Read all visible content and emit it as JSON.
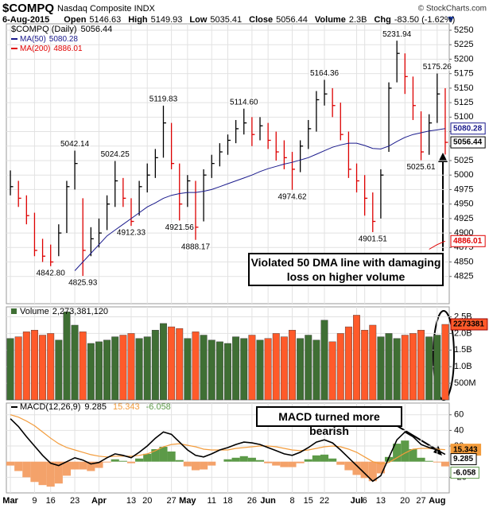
{
  "chart_data": {
    "type": "ohlc",
    "title": "$COMPQ",
    "subtitle": "Nasdaq Composite INDX",
    "source": "© StockCharts.com",
    "header": {
      "date": "6-Aug-2015",
      "stats": [
        {
          "label": "Open",
          "value": "5146.63"
        },
        {
          "label": "High",
          "value": "5149.93"
        },
        {
          "label": "Low",
          "value": "5035.41"
        },
        {
          "label": "Close",
          "value": "5056.44"
        },
        {
          "label": "Volume",
          "value": "2.3B"
        },
        {
          "label": "Chg",
          "value": "-83.50 (-1.62%)"
        }
      ]
    },
    "grid": true,
    "categories": [
      "Mar",
      null,
      null,
      "9",
      null,
      "16",
      null,
      null,
      "23",
      null,
      null,
      "Apr",
      null,
      null,
      null,
      "13",
      null,
      "20",
      null,
      null,
      "27",
      null,
      "May",
      null,
      null,
      "11",
      null,
      "18",
      null,
      null,
      "26",
      null,
      "Jun",
      null,
      null,
      "8",
      null,
      "15",
      null,
      "22",
      null,
      null,
      null,
      "Jul",
      "6",
      null,
      "13",
      null,
      null,
      "20",
      null,
      "27",
      null,
      "Aug",
      null
    ],
    "price": {
      "name": "$COMPQ (Daily)",
      "up_color": "#000000",
      "down_color": "#dd0000",
      "ylim": [
        4778,
        5261
      ],
      "yticks": [
        4825,
        4850,
        4875,
        4900,
        4925,
        4950,
        4975,
        5000,
        5025,
        5050,
        5075,
        5100,
        5125,
        5150,
        5175,
        5200,
        5225,
        5250
      ],
      "high": [
        5008,
        4990,
        4965,
        4935,
        4890,
        4880,
        4915,
        4990,
        5042.14,
        4960,
        4910,
        4925,
        4965,
        5024.25,
        4995,
        4960,
        4990,
        5020,
        5045,
        5119.83,
        5090,
        5020,
        5000,
        4990,
        5010,
        5035,
        5055,
        5070,
        5095,
        5114.6,
        5100,
        5100,
        5090,
        5075,
        5060,
        5040,
        5060,
        5095,
        5145,
        5164.36,
        5150,
        5125,
        5075,
        5020,
        5000,
        4970,
        5010,
        5160,
        5231.94,
        5210,
        5170,
        5110,
        5105,
        5175.26,
        5149.93
      ],
      "low": [
        4965,
        4945,
        4915,
        4860,
        4850,
        4842.8,
        4860,
        4900,
        4975,
        4825.93,
        4860,
        4875,
        4905,
        4945,
        4945,
        4912.33,
        4930,
        4970,
        4995,
        5030,
        5010,
        4921.56,
        4945,
        4888.17,
        4920,
        4995,
        5015,
        5035,
        5055,
        5070,
        5050,
        5060,
        5045,
        5025,
        5010,
        4974.62,
        5005,
        5045,
        5075,
        5120,
        5100,
        5060,
        4995,
        4970,
        4930,
        4901.51,
        4925,
        5040,
        5160,
        5140,
        5095,
        5025.61,
        5035,
        5090,
        5035.41
      ],
      "close": [
        4980,
        4960,
        4930,
        4870,
        4860,
        4850,
        4900,
        4980,
        5020,
        4870,
        4890,
        4900,
        4950,
        4990,
        4960,
        4920,
        4980,
        5000,
        5030,
        5090,
        5020,
        4950,
        4990,
        4910,
        5000,
        5020,
        5040,
        5060,
        5080,
        5090,
        5070,
        5085,
        5060,
        5040,
        5030,
        5010,
        5050,
        5080,
        5130,
        5140,
        5120,
        5070,
        5010,
        4990,
        4960,
        4920,
        5000,
        5150,
        5210,
        5170,
        5120,
        5040,
        5090,
        5140,
        5056.44
      ],
      "series": [
        {
          "name": "MA(50)",
          "color": "#1a1a8c",
          "values": [
            null,
            null,
            null,
            null,
            null,
            null,
            null,
            null,
            4835,
            4850,
            4865,
            4880,
            4895,
            4905,
            4915,
            4925,
            4935,
            4945,
            4952,
            4960,
            4965,
            4968,
            4970,
            4970,
            4972,
            4975,
            4980,
            4985,
            4990,
            4995,
            5000,
            5006,
            5011,
            5015,
            5019,
            5022,
            5026,
            5030,
            5036,
            5042,
            5048,
            5052,
            5055,
            5055,
            5051,
            5046,
            5045,
            5050,
            5058,
            5065,
            5070,
            5073,
            5076,
            5078,
            5080.28
          ]
        },
        {
          "name": "MA(200)",
          "color": "#e00000",
          "values": [
            null,
            null,
            null,
            null,
            null,
            null,
            null,
            null,
            null,
            null,
            null,
            null,
            null,
            null,
            null,
            null,
            null,
            null,
            null,
            null,
            null,
            null,
            null,
            null,
            null,
            null,
            null,
            null,
            null,
            null,
            null,
            null,
            null,
            null,
            null,
            null,
            null,
            null,
            null,
            null,
            null,
            null,
            null,
            null,
            null,
            null,
            null,
            null,
            null,
            null,
            null,
            null,
            4872,
            4880,
            4886.01
          ]
        }
      ],
      "annotations": [
        {
          "x": 5,
          "value": 4842.8,
          "label": "4842.80"
        },
        {
          "x": 8,
          "value": 5042.14
        },
        {
          "x": 9,
          "value": 4825.93
        },
        {
          "x": 13,
          "value": 5024.25
        },
        {
          "x": 15,
          "value": 4912.33
        },
        {
          "x": 19,
          "value": 5119.83
        },
        {
          "x": 21,
          "value": 4921.56
        },
        {
          "x": 23,
          "value": 4888.17
        },
        {
          "x": 29,
          "value": 5114.6,
          "label": "5114.60"
        },
        {
          "x": 35,
          "value": 4974.62
        },
        {
          "x": 39,
          "value": 5164.36
        },
        {
          "x": 45,
          "value": 4901.51
        },
        {
          "x": 48,
          "value": 5231.94
        },
        {
          "x": 51,
          "value": 5025.61
        },
        {
          "x": 53,
          "value": 5175.26
        }
      ],
      "note": "Violated 50 DMA line with damaging loss on higher volume"
    },
    "volume": {
      "name": "Volume",
      "up_color": "#3f6f34",
      "down_color": "#ff5a2a",
      "ylim": [
        0,
        2800000000
      ],
      "yticks": [
        {
          "value": 500000000,
          "label": "500M"
        },
        {
          "value": 1000000000,
          "label": "1.0B"
        },
        {
          "value": 1500000000,
          "label": "1.5B"
        },
        {
          "value": 2000000000,
          "label": "2.0B"
        },
        {
          "value": 2500000000,
          "label": "2.5B"
        }
      ],
      "values": [
        1850000000,
        1900000000,
        2050000000,
        2100000000,
        1950000000,
        2000000000,
        1800000000,
        2650000000,
        2250000000,
        2050000000,
        1700000000,
        1750000000,
        1800000000,
        1900000000,
        1950000000,
        2000000000,
        1850000000,
        1900000000,
        2100000000,
        2300000000,
        2200000000,
        2150000000,
        1850000000,
        2050000000,
        1950000000,
        1800000000,
        1750000000,
        1700000000,
        1900000000,
        1850000000,
        1950000000,
        1800000000,
        1850000000,
        2000000000,
        1900000000,
        2100000000,
        1850000000,
        1950000000,
        1800000000,
        2400000000,
        1750000000,
        2000000000,
        2200000000,
        2550000000,
        2100000000,
        2250000000,
        1900000000,
        2000000000,
        1850000000,
        1950000000,
        2000000000,
        2100000000,
        1900000000,
        1950000000,
        2273381120
      ],
      "legend_value": {
        "value": 2273381120,
        "label": "2,273,381,120"
      },
      "box_label": "2273381"
    },
    "macd": {
      "name": "MACD(12,26,9)",
      "ylim": [
        -40,
        75
      ],
      "yticks": [
        -20,
        20,
        40,
        60
      ],
      "macd": {
        "color": "#000000",
        "values": [
          55,
          45,
          32,
          20,
          8,
          -2,
          -5,
          0,
          5,
          2,
          -3,
          -1,
          5,
          10,
          8,
          5,
          12,
          20,
          30,
          38,
          35,
          25,
          15,
          8,
          6,
          10,
          15,
          18,
          22,
          25,
          24,
          22,
          18,
          14,
          10,
          8,
          12,
          18,
          25,
          28,
          24,
          15,
          5,
          -5,
          -15,
          -25,
          -18,
          5,
          28,
          38,
          32,
          22,
          18,
          15,
          9.285
        ]
      },
      "signal": {
        "color": "#f39c3c",
        "values": [
          60,
          57,
          52,
          46,
          38,
          30,
          23,
          18,
          15,
          12,
          9,
          7,
          6,
          7,
          7,
          7,
          8,
          10,
          14,
          19,
          22,
          23,
          21,
          19,
          16,
          15,
          15,
          15,
          17,
          18,
          19,
          20,
          20,
          19,
          17,
          15,
          14,
          15,
          17,
          19,
          20,
          19,
          16,
          12,
          6,
          0,
          -3,
          -1,
          5,
          11,
          16,
          17,
          17,
          16,
          15.343
        ]
      },
      "histogram": {
        "up_color": "#5c9a48",
        "down_color": "#f4a26a",
        "values": [
          -5,
          -12,
          -20,
          -26,
          -30,
          -32,
          -28,
          -18,
          -10,
          -10,
          -12,
          -8,
          -1,
          3,
          1,
          -2,
          4,
          10,
          16,
          19,
          13,
          2,
          -6,
          -11,
          -10,
          -5,
          0,
          3,
          5,
          7,
          5,
          2,
          -2,
          -5,
          -7,
          -7,
          -2,
          3,
          8,
          9,
          4,
          -4,
          -11,
          -17,
          -21,
          -25,
          -15,
          6,
          23,
          27,
          16,
          5,
          1,
          -1,
          -6.058
        ]
      },
      "note": "MACD turned more bearish"
    }
  }
}
